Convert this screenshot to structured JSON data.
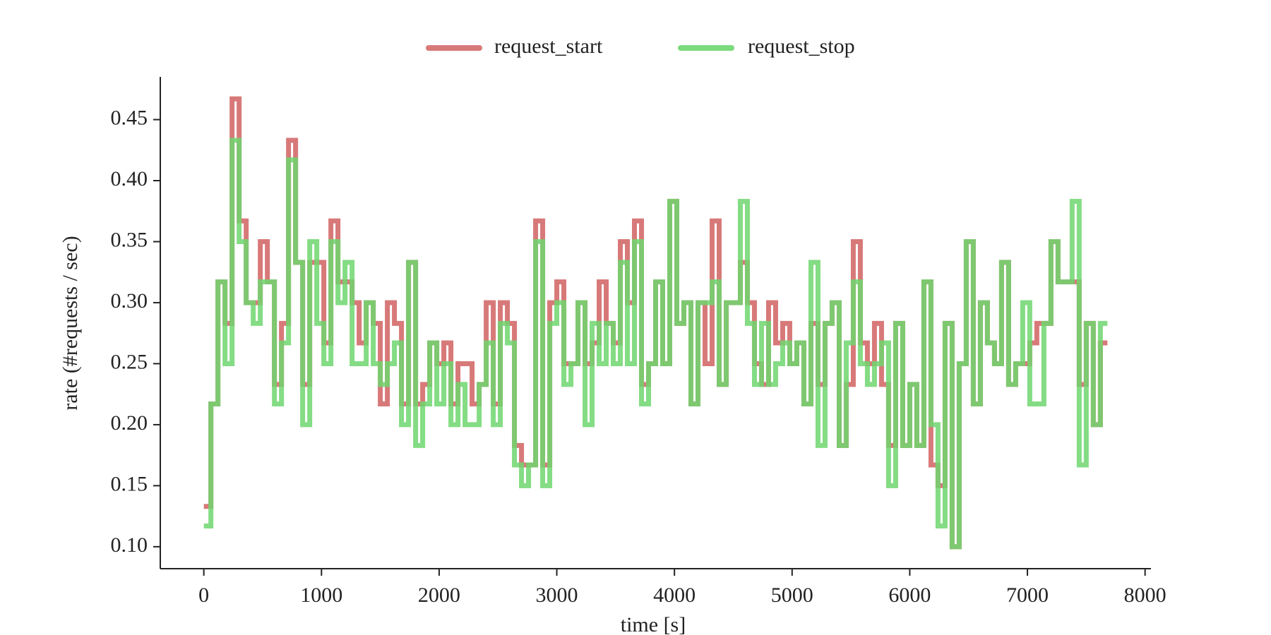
{
  "chart_data": {
    "type": "step",
    "xlabel": "time [s]",
    "ylabel": "rate (#requests / sec)",
    "x": [
      0,
      60,
      120,
      180,
      240,
      300,
      360,
      420,
      480,
      540,
      600,
      660,
      720,
      780,
      840,
      900,
      960,
      1020,
      1080,
      1140,
      1200,
      1260,
      1320,
      1380,
      1440,
      1500,
      1560,
      1620,
      1680,
      1740,
      1800,
      1860,
      1920,
      1980,
      2040,
      2100,
      2160,
      2220,
      2280,
      2340,
      2400,
      2460,
      2520,
      2580,
      2640,
      2700,
      2760,
      2820,
      2880,
      2940,
      3000,
      3060,
      3120,
      3180,
      3240,
      3300,
      3360,
      3420,
      3480,
      3540,
      3600,
      3660,
      3720,
      3780,
      3840,
      3900,
      3960,
      4020,
      4080,
      4140,
      4200,
      4260,
      4320,
      4380,
      4440,
      4500,
      4560,
      4620,
      4680,
      4740,
      4800,
      4860,
      4920,
      4980,
      5040,
      5100,
      5160,
      5220,
      5280,
      5340,
      5400,
      5460,
      5520,
      5580,
      5640,
      5700,
      5760,
      5820,
      5880,
      5940,
      6000,
      6060,
      6120,
      6180,
      6240,
      6300,
      6360,
      6420,
      6480,
      6540,
      6600,
      6660,
      6720,
      6780,
      6840,
      6900,
      6960,
      7020,
      7080,
      7140,
      7200,
      7260,
      7320,
      7380,
      7440,
      7500,
      7560,
      7620,
      7680
    ],
    "series": [
      {
        "name": "request_start",
        "color": "#d46a6a",
        "values": [
          0.133,
          0.217,
          0.317,
          0.283,
          0.467,
          0.367,
          0.3,
          0.3,
          0.35,
          0.317,
          0.233,
          0.283,
          0.433,
          0.333,
          0.233,
          0.333,
          0.333,
          0.267,
          0.367,
          0.317,
          0.317,
          0.3,
          0.267,
          0.3,
          0.283,
          0.217,
          0.3,
          0.283,
          0.217,
          0.333,
          0.217,
          0.233,
          0.267,
          0.25,
          0.267,
          0.217,
          0.25,
          0.25,
          0.217,
          0.233,
          0.3,
          0.217,
          0.3,
          0.283,
          0.183,
          0.167,
          0.167,
          0.367,
          0.167,
          0.3,
          0.317,
          0.25,
          0.25,
          0.3,
          0.25,
          0.267,
          0.317,
          0.283,
          0.267,
          0.35,
          0.3,
          0.367,
          0.233,
          0.25,
          0.317,
          0.25,
          0.383,
          0.283,
          0.3,
          0.217,
          0.3,
          0.25,
          0.367,
          0.233,
          0.3,
          0.3,
          0.333,
          0.3,
          0.25,
          0.233,
          0.3,
          0.267,
          0.283,
          0.25,
          0.267,
          0.217,
          0.283,
          0.233,
          0.283,
          0.3,
          0.183,
          0.233,
          0.35,
          0.267,
          0.25,
          0.283,
          0.233,
          0.183,
          0.283,
          0.183,
          0.233,
          0.183,
          0.317,
          0.167,
          0.15,
          0.283,
          0.1,
          0.25,
          0.35,
          0.217,
          0.3,
          0.267,
          0.25,
          0.333,
          0.233,
          0.25,
          0.25,
          0.267,
          0.283,
          0.283,
          0.35,
          0.317,
          0.317,
          0.317,
          0.233,
          0.283,
          0.2,
          0.267,
          0.267
        ]
      },
      {
        "name": "request_stop",
        "color": "#6fd66f",
        "values": [
          0.117,
          0.217,
          0.317,
          0.25,
          0.433,
          0.35,
          0.3,
          0.283,
          0.317,
          0.317,
          0.217,
          0.267,
          0.417,
          0.333,
          0.2,
          0.35,
          0.283,
          0.25,
          0.35,
          0.3,
          0.333,
          0.25,
          0.25,
          0.3,
          0.25,
          0.233,
          0.25,
          0.267,
          0.2,
          0.333,
          0.183,
          0.217,
          0.267,
          0.217,
          0.25,
          0.2,
          0.233,
          0.2,
          0.2,
          0.233,
          0.267,
          0.2,
          0.283,
          0.267,
          0.167,
          0.15,
          0.167,
          0.35,
          0.15,
          0.283,
          0.3,
          0.233,
          0.25,
          0.3,
          0.2,
          0.283,
          0.25,
          0.283,
          0.25,
          0.333,
          0.25,
          0.35,
          0.217,
          0.25,
          0.317,
          0.25,
          0.383,
          0.283,
          0.3,
          0.217,
          0.3,
          0.3,
          0.317,
          0.233,
          0.3,
          0.3,
          0.383,
          0.283,
          0.233,
          0.283,
          0.233,
          0.25,
          0.267,
          0.25,
          0.267,
          0.217,
          0.333,
          0.183,
          0.283,
          0.3,
          0.183,
          0.267,
          0.317,
          0.25,
          0.233,
          0.25,
          0.267,
          0.15,
          0.283,
          0.183,
          0.233,
          0.183,
          0.317,
          0.2,
          0.117,
          0.283,
          0.1,
          0.25,
          0.35,
          0.217,
          0.3,
          0.267,
          0.25,
          0.333,
          0.233,
          0.25,
          0.3,
          0.217,
          0.217,
          0.283,
          0.35,
          0.317,
          0.317,
          0.383,
          0.167,
          0.283,
          0.2,
          0.283,
          0.283
        ]
      }
    ],
    "xlim": [
      -370,
      8050
    ],
    "ylim": [
      0.082,
      0.485
    ],
    "xticks": [
      0,
      1000,
      2000,
      3000,
      4000,
      5000,
      6000,
      7000,
      8000
    ],
    "yticks": [
      {
        "value": 0.1,
        "label": "0.10"
      },
      0.15,
      {
        "value": 0.2,
        "label": "0.20"
      },
      0.25,
      {
        "value": 0.3,
        "label": "0.30"
      },
      0.35,
      {
        "value": 0.4,
        "label": "0.40"
      },
      0.45
    ],
    "legend": "top-center",
    "grid": false
  }
}
